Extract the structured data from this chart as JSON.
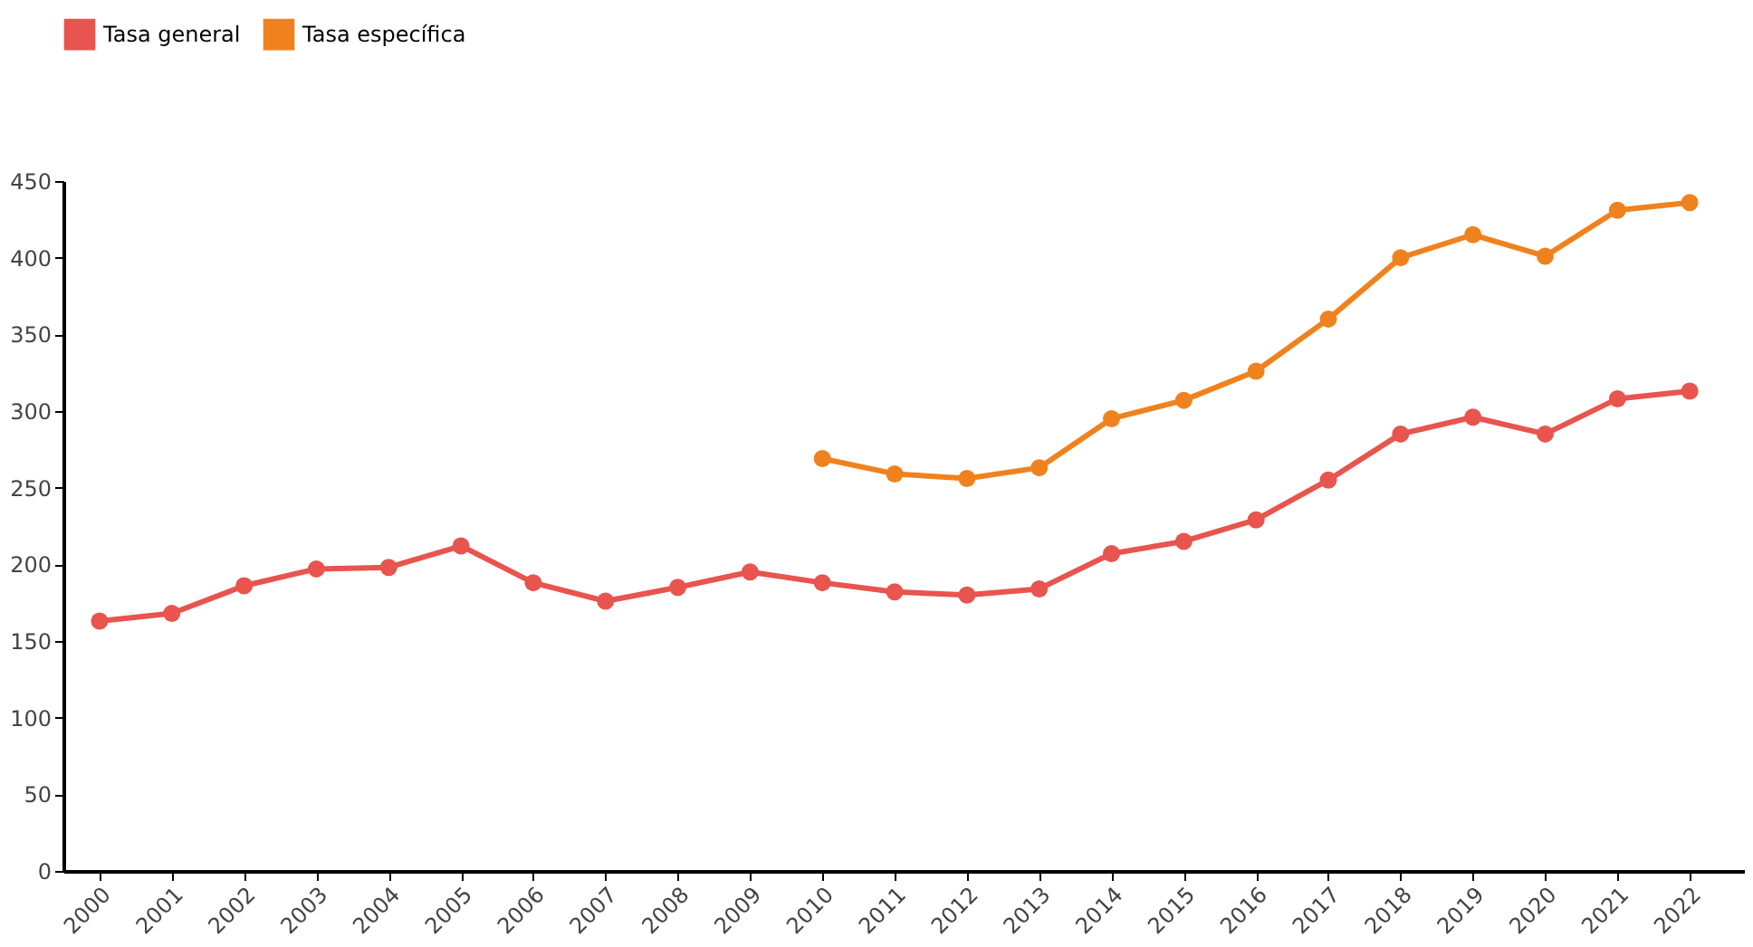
{
  "chart_data": {
    "type": "line",
    "categories": [
      "2000",
      "2001",
      "2002",
      "2003",
      "2004",
      "2005",
      "2006",
      "2007",
      "2008",
      "2009",
      "2010",
      "2011",
      "2012",
      "2013",
      "2014",
      "2015",
      "2016",
      "2017",
      "2018",
      "2019",
      "2020",
      "2021",
      "2022"
    ],
    "series": [
      {
        "name": "Tasa general",
        "color": "#e8544e",
        "values": [
          163,
          168,
          186,
          197,
          198,
          212,
          188,
          176,
          185,
          195,
          188,
          182,
          180,
          184,
          207,
          215,
          229,
          255,
          285,
          296,
          285,
          308,
          313
        ]
      },
      {
        "name": "Tasa específica",
        "color": "#f0821e",
        "values": [
          null,
          null,
          null,
          null,
          null,
          null,
          null,
          null,
          null,
          null,
          269,
          259,
          256,
          263,
          295,
          307,
          326,
          360,
          400,
          415,
          401,
          431,
          436
        ]
      }
    ],
    "ylim": [
      0,
      450
    ],
    "yticks": [
      0,
      50,
      100,
      150,
      200,
      250,
      300,
      350,
      400,
      450
    ],
    "grid": false,
    "legend": "top left",
    "marker": "circle",
    "line_style": "solid"
  }
}
